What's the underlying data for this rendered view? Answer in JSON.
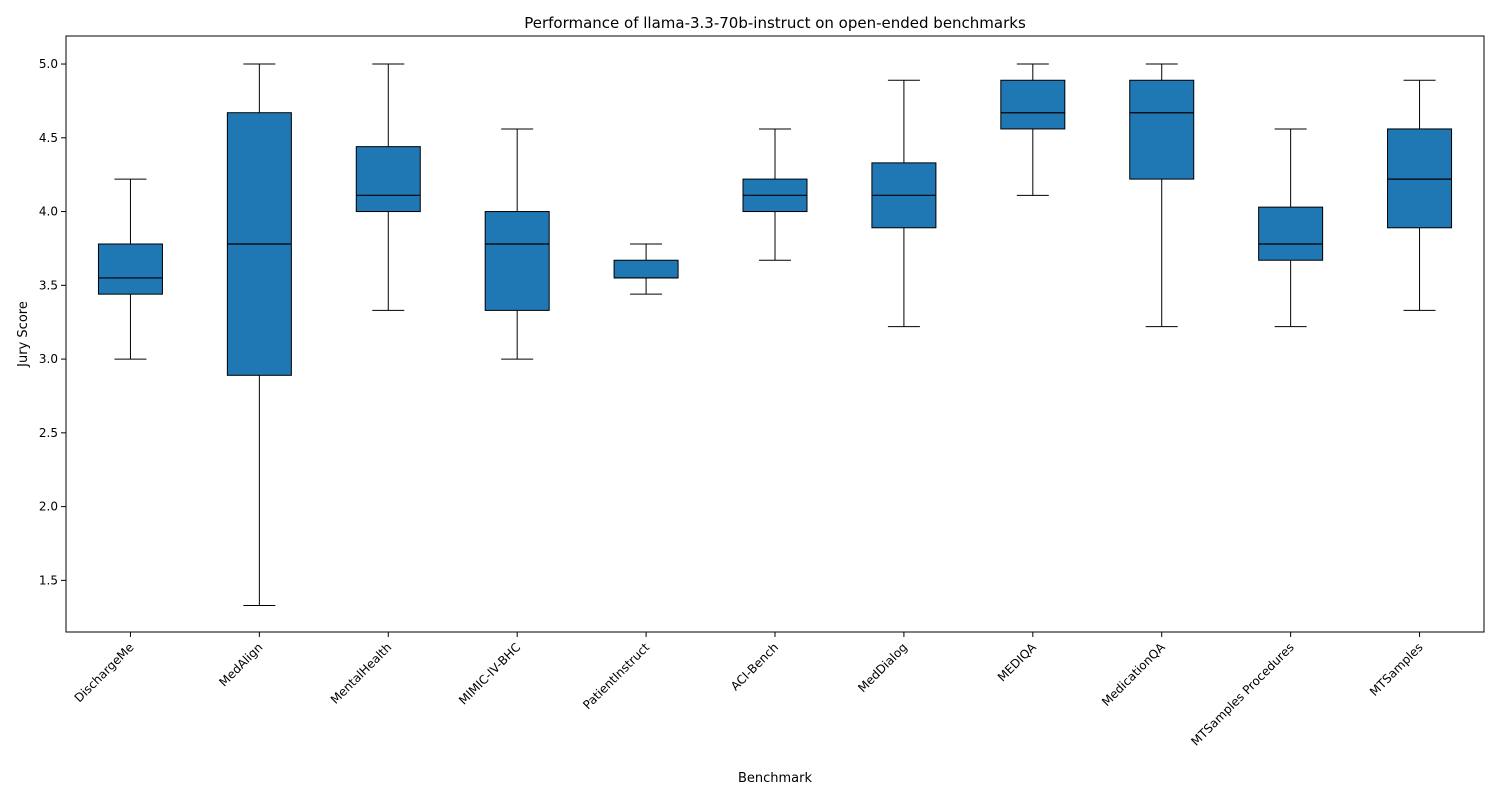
{
  "chart_data": {
    "type": "box",
    "title": "Performance of llama-3.3-70b-instruct on open-ended benchmarks",
    "xlabel": "Benchmark",
    "ylabel": "Jury Score",
    "ylim": [
      1.15,
      5.19
    ],
    "yticks": [
      "1.5",
      "2.0",
      "2.5",
      "3.0",
      "3.5",
      "4.0",
      "4.5",
      "5.0"
    ],
    "ytick_values": [
      1.5,
      2.0,
      2.5,
      3.0,
      3.5,
      4.0,
      4.5,
      5.0
    ],
    "grid": false,
    "box_color": "#1f77b4",
    "edge_color": "#000000",
    "categories": [
      "DischargeMe",
      "MedAlign",
      "MentalHealth",
      "MIMIC-IV-BHC",
      "PatientInstruct",
      "ACI-Bench",
      "MedDialog",
      "MEDIQA",
      "MedicationQA",
      "MTSamples Procedures",
      "MTSamples"
    ],
    "boxes": [
      {
        "whisker_low": 3.0,
        "q1": 3.44,
        "median": 3.55,
        "q3": 3.78,
        "whisker_high": 4.22
      },
      {
        "whisker_low": 1.33,
        "q1": 2.89,
        "median": 3.78,
        "q3": 4.67,
        "whisker_high": 5.0
      },
      {
        "whisker_low": 3.33,
        "q1": 4.0,
        "median": 4.11,
        "q3": 4.44,
        "whisker_high": 5.0
      },
      {
        "whisker_low": 3.0,
        "q1": 3.33,
        "median": 3.78,
        "q3": 4.0,
        "whisker_high": 4.56
      },
      {
        "whisker_low": 3.44,
        "q1": 3.55,
        "median": 3.55,
        "q3": 3.67,
        "whisker_high": 3.78
      },
      {
        "whisker_low": 3.67,
        "q1": 4.0,
        "median": 4.11,
        "q3": 4.22,
        "whisker_high": 4.56
      },
      {
        "whisker_low": 3.22,
        "q1": 3.89,
        "median": 4.11,
        "q3": 4.33,
        "whisker_high": 4.89
      },
      {
        "whisker_low": 4.11,
        "q1": 4.56,
        "median": 4.67,
        "q3": 4.89,
        "whisker_high": 5.0
      },
      {
        "whisker_low": 3.22,
        "q1": 4.22,
        "median": 4.67,
        "q3": 4.89,
        "whisker_high": 5.0
      },
      {
        "whisker_low": 3.22,
        "q1": 3.67,
        "median": 3.78,
        "q3": 4.03,
        "whisker_high": 4.56
      },
      {
        "whisker_low": 3.33,
        "q1": 3.89,
        "median": 4.22,
        "q3": 4.56,
        "whisker_high": 4.89
      }
    ]
  }
}
